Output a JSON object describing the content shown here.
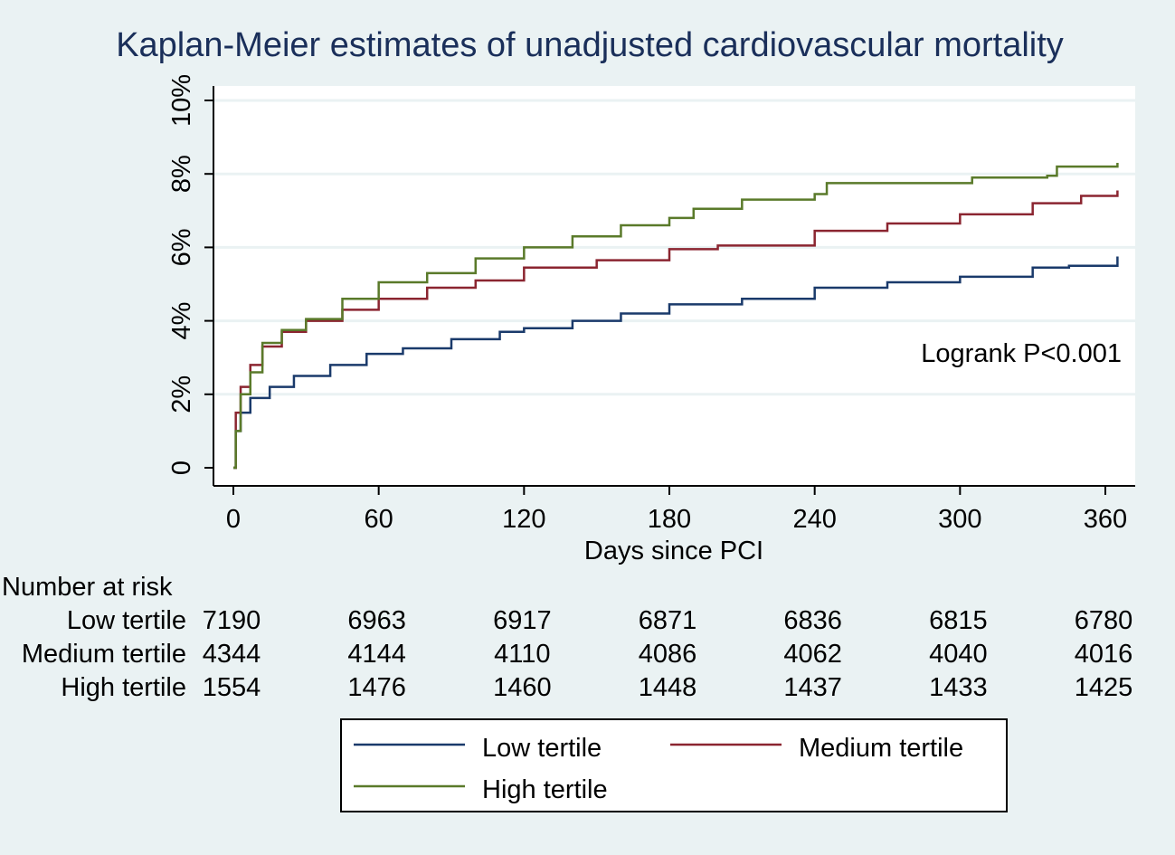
{
  "chart_data": {
    "type": "line",
    "title": "Kaplan-Meier estimates of unadjusted cardiovascular mortality",
    "xlabel": "Days since PCI",
    "ylabel": "",
    "xlim": [
      0,
      365
    ],
    "ylim": [
      0,
      10
    ],
    "xticks": [
      0,
      60,
      120,
      180,
      240,
      300,
      360
    ],
    "xtick_labels": [
      "0",
      "60",
      "120",
      "180",
      "240",
      "300",
      "360"
    ],
    "yticks": [
      0,
      2,
      4,
      6,
      8,
      10
    ],
    "ytick_labels": [
      "0",
      "2%",
      "4%",
      "6%",
      "8%",
      "10%"
    ],
    "grid": true,
    "step": true,
    "annotation": "Logrank P<0.001",
    "legend_position": "bottom",
    "series": [
      {
        "name": "Low tertile",
        "color": "#1a3a6b",
        "x": [
          0,
          1,
          3,
          7,
          15,
          25,
          40,
          55,
          70,
          90,
          110,
          120,
          140,
          160,
          180,
          210,
          240,
          270,
          300,
          330,
          345,
          365
        ],
        "y": [
          0,
          1.0,
          1.5,
          1.9,
          2.2,
          2.5,
          2.8,
          3.1,
          3.25,
          3.5,
          3.7,
          3.8,
          4.0,
          4.2,
          4.45,
          4.6,
          4.9,
          5.05,
          5.2,
          5.45,
          5.5,
          5.75
        ]
      },
      {
        "name": "Medium tertile",
        "color": "#8b2530",
        "x": [
          0,
          1,
          3,
          7,
          12,
          20,
          30,
          45,
          60,
          80,
          100,
          120,
          150,
          180,
          200,
          240,
          270,
          300,
          330,
          350,
          365
        ],
        "y": [
          0,
          1.5,
          2.2,
          2.8,
          3.3,
          3.7,
          4.0,
          4.3,
          4.6,
          4.9,
          5.1,
          5.45,
          5.65,
          5.95,
          6.05,
          6.45,
          6.65,
          6.9,
          7.2,
          7.4,
          7.55
        ]
      },
      {
        "name": "High tertile",
        "color": "#5a7a2a",
        "x": [
          0,
          1,
          3,
          7,
          12,
          20,
          30,
          45,
          60,
          80,
          100,
          120,
          140,
          160,
          180,
          190,
          210,
          240,
          245,
          300,
          305,
          336,
          340,
          360,
          365
        ],
        "y": [
          0,
          1.0,
          2.0,
          2.6,
          3.4,
          3.75,
          4.05,
          4.6,
          5.05,
          5.3,
          5.7,
          6.0,
          6.3,
          6.6,
          6.8,
          7.05,
          7.3,
          7.45,
          7.75,
          7.75,
          7.9,
          7.95,
          8.2,
          8.2,
          8.3
        ]
      }
    ],
    "risk_table": {
      "title": "Number at risk",
      "rows": [
        {
          "label": "Low tertile",
          "values": [
            "7190",
            "6963",
            "6917",
            "6871",
            "6836",
            "6815",
            "6780"
          ]
        },
        {
          "label": "Medium tertile",
          "values": [
            "4344",
            "4144",
            "4110",
            "4086",
            "4062",
            "4040",
            "4016"
          ]
        },
        {
          "label": "High tertile",
          "values": [
            "1554",
            "1476",
            "1460",
            "1448",
            "1437",
            "1433",
            "1425"
          ]
        }
      ]
    }
  }
}
